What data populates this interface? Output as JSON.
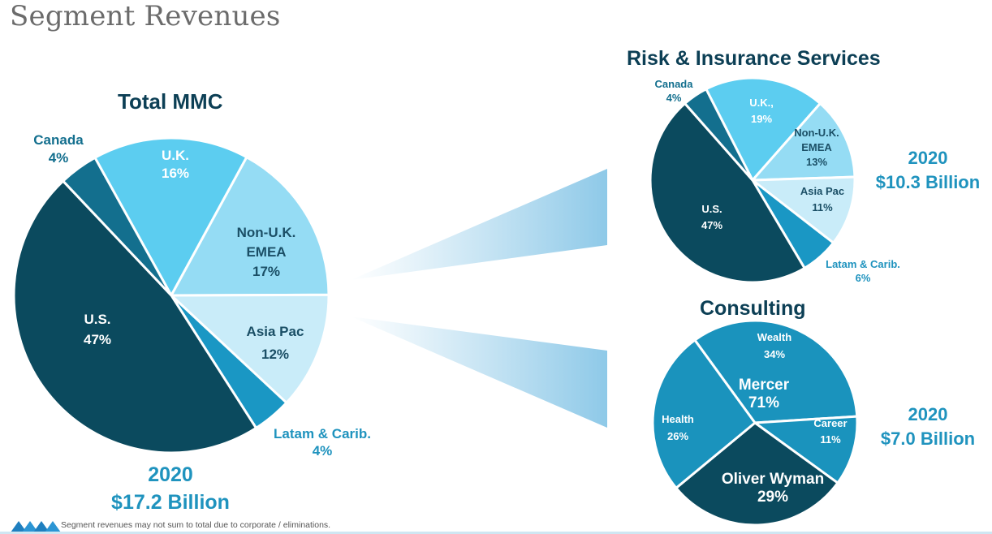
{
  "header": {
    "title": "Segment Revenues"
  },
  "footer": {
    "note": "Segment revenues may not sum to total due to corporate  / eliminations."
  },
  "colors": {
    "us": "#0b4a5e",
    "canada": "#136f8e",
    "uk": "#5ccdf0",
    "emea": "#95dcf4",
    "asia": "#c9ecf9",
    "latam": "#1a97c4",
    "accent": "#1f93be",
    "title": "#0c3f55",
    "wealth": "#1a93bd",
    "career": "#1a93bd",
    "health": "#1a93bd",
    "wyman": "#0b4a5e"
  },
  "chart_data": [
    {
      "type": "pie",
      "title": "Total MMC",
      "year": "2020",
      "total": "$17.2 Billion",
      "slices": [
        {
          "label": "U.K.",
          "value": 16,
          "text": "16%"
        },
        {
          "label": "Non-U.K. EMEA",
          "value": 17,
          "text": "17%"
        },
        {
          "label": "Asia Pac",
          "value": 12,
          "text": "12%"
        },
        {
          "label": "Latam & Carib.",
          "value": 4,
          "text": "4%"
        },
        {
          "label": "U.S.",
          "value": 47,
          "text": "47%"
        },
        {
          "label": "Canada",
          "value": 4,
          "text": "4%"
        }
      ]
    },
    {
      "type": "pie",
      "title": "Risk & Insurance Services",
      "year": "2020",
      "total": "$10.3 Billion",
      "slices": [
        {
          "label": "U.K.,",
          "value": 19,
          "text": "19%"
        },
        {
          "label": "Non-U.K. EMEA",
          "value": 13,
          "text": "13%"
        },
        {
          "label": "Asia Pac",
          "value": 11,
          "text": "11%"
        },
        {
          "label": "Latam & Carib.",
          "value": 6,
          "text": "6%"
        },
        {
          "label": "U.S.",
          "value": 47,
          "text": "47%"
        },
        {
          "label": "Canada",
          "value": 4,
          "text": "4%"
        }
      ]
    },
    {
      "type": "pie",
      "title": "Consulting",
      "year": "2020",
      "total": "$7.0 Billion",
      "groups": [
        {
          "label": "Mercer",
          "text": "71%"
        },
        {
          "label": "Oliver Wyman",
          "text": "29%"
        }
      ],
      "slices": [
        {
          "label": "Wealth",
          "value": 34,
          "text": "34%"
        },
        {
          "label": "Career",
          "value": 11,
          "text": "11%"
        },
        {
          "label": "Oliver Wyman",
          "value": 29,
          "text": "29%"
        },
        {
          "label": "Health",
          "value": 26,
          "text": "26%"
        }
      ]
    }
  ]
}
